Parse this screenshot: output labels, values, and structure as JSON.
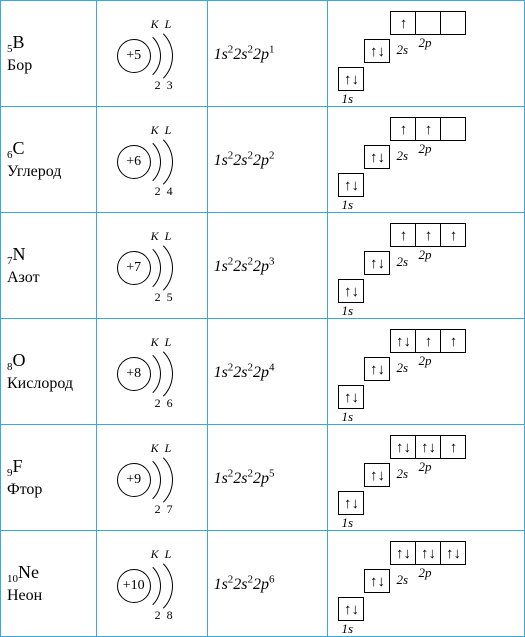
{
  "arrows": {
    "up": "↑",
    "down": "↓",
    "updown": "↑↓"
  },
  "shell_labels": {
    "k": "K",
    "l": "L"
  },
  "orbital_labels": {
    "s1": "1s",
    "s2": "2s",
    "p2": "2p"
  },
  "elements": [
    {
      "z": "5",
      "symbol": "B",
      "name": "Бор",
      "core": "+5",
      "shell1": "2",
      "shell2": "3",
      "config_html": "1<i>s</i><sup>2</sup>2<i>s</i><sup>2</sup>2<i>p</i><sup>1</sup>",
      "p": [
        "↑",
        "",
        ""
      ],
      "s2": "↑↓",
      "s1": "↑↓"
    },
    {
      "z": "6",
      "symbol": "C",
      "name": "Углерод",
      "core": "+6",
      "shell1": "2",
      "shell2": "4",
      "config_html": "1<i>s</i><sup>2</sup>2<i>s</i><sup>2</sup>2<i>p</i><sup>2</sup>",
      "p": [
        "↑",
        "↑",
        ""
      ],
      "s2": "↑↓",
      "s1": "↑↓"
    },
    {
      "z": "7",
      "symbol": "N",
      "name": "Азот",
      "core": "+7",
      "shell1": "2",
      "shell2": "5",
      "config_html": "1<i>s</i><sup>2</sup>2<i>s</i><sup>2</sup>2<i>p</i><sup>3</sup>",
      "p": [
        "↑",
        "↑",
        "↑"
      ],
      "s2": "↑↓",
      "s1": "↑↓"
    },
    {
      "z": "8",
      "symbol": "O",
      "name": "Кислород",
      "core": "+8",
      "shell1": "2",
      "shell2": "6",
      "config_html": "1<i>s</i><sup>2</sup>2<i>s</i><sup>2</sup>2<i>p</i><sup>4</sup>",
      "p": [
        "↑↓",
        "↑",
        "↑"
      ],
      "s2": "↑↓",
      "s1": "↑↓"
    },
    {
      "z": "9",
      "symbol": "F",
      "name": "Фтор",
      "core": "+9",
      "shell1": "2",
      "shell2": "7",
      "config_html": "1<i>s</i><sup>2</sup>2<i>s</i><sup>2</sup>2<i>p</i><sup>5</sup>",
      "p": [
        "↑↓",
        "↑↓",
        "↑"
      ],
      "s2": "↑↓",
      "s1": "↑↓"
    },
    {
      "z": "10",
      "symbol": "Ne",
      "name": "Неон",
      "core": "+10",
      "shell1": "2",
      "shell2": "8",
      "config_html": "1<i>s</i><sup>2</sup>2<i>s</i><sup>2</sup>2<i>p</i><sup>6</sup>",
      "p": [
        "↑↓",
        "↑↓",
        "↑↓"
      ],
      "s2": "↑↓",
      "s1": "↑↓"
    }
  ],
  "colors": {
    "border": "#3aa8d8",
    "text": "#000000",
    "bg": "#ffffff"
  }
}
